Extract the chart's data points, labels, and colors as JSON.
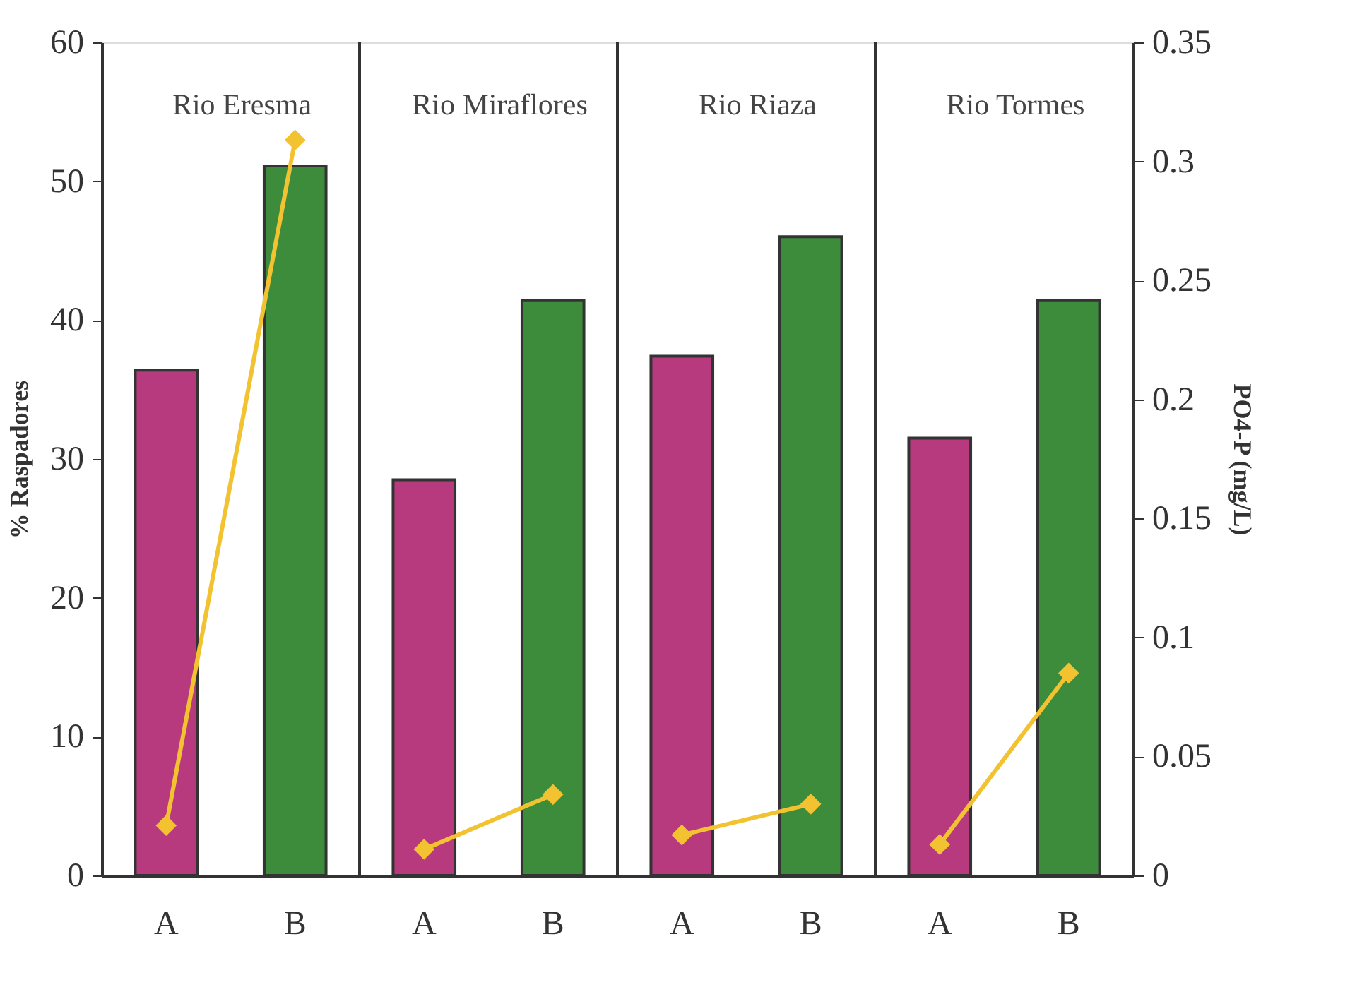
{
  "chart_data": {
    "type": "bar",
    "categories": [
      "A",
      "B",
      "A",
      "B",
      "A",
      "B",
      "A",
      "B"
    ],
    "ylabel": "% Raspadores",
    "y2label": "PO4-P (mg/L)",
    "annotations": [
      "Rio Eresma",
      "Rio Miraflores",
      "Rio Riaza",
      "Rio Tormes"
    ],
    "ylim": [
      0,
      60
    ],
    "yticks": [
      0,
      10,
      20,
      30,
      40,
      50,
      60
    ],
    "y2lim": [
      0,
      0.35
    ],
    "y2ticks": [
      0,
      0.05,
      0.1,
      0.15,
      0.2,
      0.25,
      0.3,
      0.35
    ],
    "grid": false,
    "series": [
      {
        "values": [
          36.4,
          51.1,
          28.5,
          41.4,
          37.4,
          46.0,
          31.5,
          41.4
        ],
        "colors": [
          "#b83a7e",
          "#3c8c3c",
          "#b83a7e",
          "#3c8c3c",
          "#b83a7e",
          "#3c8c3c",
          "#b83a7e",
          "#3c8c3c"
        ]
      },
      {
        "type": "line",
        "axis": "y2",
        "color": "#f2c230",
        "marker": "diamond",
        "values": [
          0.021,
          0.309,
          null,
          null,
          null,
          null,
          null,
          null
        ]
      },
      {
        "type": "line",
        "axis": "y2",
        "color": "#f2c230",
        "marker": "diamond",
        "values": [
          null,
          null,
          0.011,
          0.034,
          null,
          null,
          null,
          null
        ]
      },
      {
        "type": "line",
        "axis": "y2",
        "color": "#f2c230",
        "marker": "diamond",
        "values": [
          null,
          null,
          null,
          null,
          0.017,
          0.03,
          null,
          null
        ]
      },
      {
        "type": "line",
        "axis": "y2",
        "color": "#f2c230",
        "marker": "diamond",
        "values": [
          null,
          null,
          null,
          null,
          null,
          null,
          0.013,
          0.085
        ]
      }
    ]
  }
}
